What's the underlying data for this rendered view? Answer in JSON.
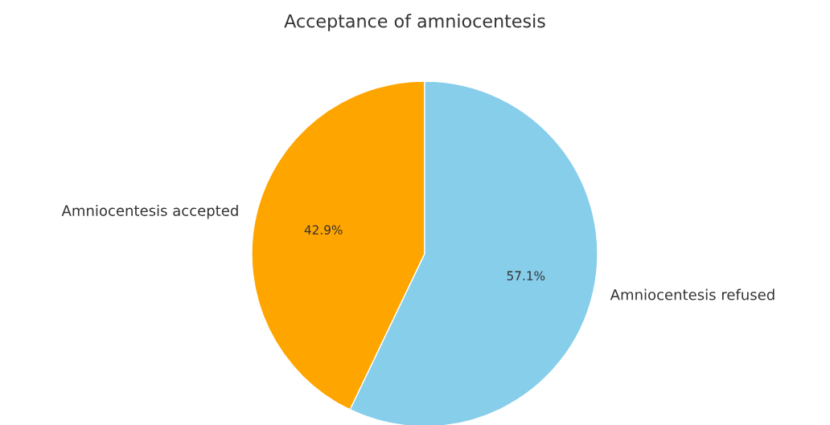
{
  "chart_data": {
    "type": "pie",
    "title": "Acceptance of amniocentesis",
    "categories": [
      "Amniocentesis accepted",
      "Amniocentesis refused"
    ],
    "values": [
      42.9,
      57.1
    ],
    "colors": [
      "#ffa500",
      "#87ceeb"
    ],
    "value_labels": [
      "42.9%",
      "57.1%"
    ]
  }
}
